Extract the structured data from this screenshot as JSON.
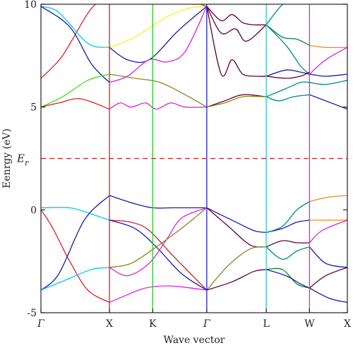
{
  "chart_data": {
    "type": "line",
    "xlabel": "Wave vector",
    "ylabel": "Eenrgy (eV)",
    "ylim": [
      -5,
      10
    ],
    "xlim": [
      0,
      8.5
    ],
    "yticks": [
      -5,
      0,
      5,
      10
    ],
    "k_points": [
      {
        "label": "Γ",
        "x": 0,
        "italic": true,
        "color": null
      },
      {
        "label": "X",
        "x": 1.9,
        "italic": false,
        "color": "#cc2222"
      },
      {
        "label": "K",
        "x": 3.1,
        "italic": false,
        "color": "#22cc22"
      },
      {
        "label": "Γ",
        "x": 4.6,
        "italic": true,
        "color": "#2222dd"
      },
      {
        "label": "L",
        "x": 6.25,
        "italic": false,
        "color": "#22cccc"
      },
      {
        "label": "W",
        "x": 7.45,
        "italic": false,
        "color": "#dd22dd"
      },
      {
        "label": "X",
        "x": 8.5,
        "italic": false,
        "color": null
      }
    ],
    "fermi": {
      "value": 2.5,
      "label_main": "E",
      "label_sub": "r",
      "color": "#cc2222"
    },
    "series": [
      {
        "color": "#dd2222",
        "x": [
          0,
          0.3,
          0.8,
          1.3,
          1.9
        ],
        "y": [
          0,
          -0.8,
          -2.5,
          -3.9,
          -4.5
        ]
      },
      {
        "color": "#00ccee",
        "x": [
          0,
          0.8,
          1.4,
          1.9
        ],
        "y": [
          0.1,
          0.1,
          -0.2,
          -0.5
        ]
      },
      {
        "color": "#1a1aaa",
        "x": [
          0,
          0.5,
          1.2,
          1.9
        ],
        "y": [
          -3.9,
          -3.1,
          -0.5,
          0.7
        ]
      },
      {
        "color": "#00ccee",
        "x": [
          0,
          0.7,
          1.4,
          1.9
        ],
        "y": [
          -3.9,
          -3.4,
          -2.9,
          -2.8
        ]
      },
      {
        "color": "#dd2222",
        "x": [
          0,
          0.6,
          1.4,
          1.9
        ],
        "y": [
          6.4,
          7.5,
          9.8,
          10.2
        ]
      },
      {
        "color": "#00ccee",
        "x": [
          0,
          0.5,
          1.3,
          1.9
        ],
        "y": [
          9.9,
          9.6,
          8.1,
          7.9
        ]
      },
      {
        "color": "#1a1aaa",
        "x": [
          0,
          0.8,
          1.4,
          1.9
        ],
        "y": [
          9.9,
          8.9,
          7.1,
          6.2
        ]
      },
      {
        "color": "#44dd22",
        "x": [
          0,
          0.6,
          1.3,
          1.9
        ],
        "y": [
          5,
          5.5,
          6.3,
          6.6
        ]
      },
      {
        "color": "#dd2222",
        "x": [
          0,
          0.5,
          1.1,
          1.9
        ],
        "y": [
          5,
          5.2,
          5.4,
          4.9
        ]
      },
      {
        "color": "#1a1aaa",
        "x": [
          1.9,
          2.6,
          3.1,
          3.7,
          4.6
        ],
        "y": [
          0.7,
          0.3,
          0.1,
          0.1,
          0.1
        ]
      },
      {
        "color": "#cc2222",
        "x": [
          1.9,
          2.5,
          3.0,
          3.7,
          4.6
        ],
        "y": [
          -0.5,
          -0.6,
          -1.0,
          -2.3,
          -3.9
        ]
      },
      {
        "color": "#1a1aaa",
        "x": [
          1.9,
          2.6,
          3.2,
          3.9,
          4.6
        ],
        "y": [
          -0.5,
          -0.9,
          -1.8,
          -3.1,
          -3.9
        ]
      },
      {
        "color": "#dd22dd",
        "x": [
          1.9,
          2.4,
          3.0,
          3.5,
          3.9,
          4.6
        ],
        "y": [
          -2.8,
          -3.2,
          -2.6,
          -1.4,
          -0.4,
          0.1
        ]
      },
      {
        "color": "#888822",
        "x": [
          1.9,
          2.5,
          3.2,
          3.9,
          4.6
        ],
        "y": [
          -2.8,
          -2.6,
          -1.8,
          -0.9,
          0.1
        ]
      },
      {
        "color": "#dd22dd",
        "x": [
          1.9,
          2.3,
          2.9,
          3.6,
          4.6
        ],
        "y": [
          -4.5,
          -4.2,
          -3.8,
          -3.7,
          -3.9
        ]
      },
      {
        "color": "#ffee22",
        "x": [
          1.9,
          2.6,
          3.4,
          4.1,
          4.6
        ],
        "y": [
          7.9,
          8.4,
          9.3,
          9.8,
          9.9
        ]
      },
      {
        "color": "#1a1aaa",
        "x": [
          1.9,
          2.4,
          3.0,
          3.8,
          4.6
        ],
        "y": [
          7.9,
          7.3,
          7.3,
          8.7,
          9.9
        ]
      },
      {
        "color": "#dd22dd",
        "x": [
          1.9,
          2.4,
          3.0,
          3.5,
          4.0,
          4.6
        ],
        "y": [
          6.2,
          6.5,
          7.3,
          7.2,
          7.7,
          9.9
        ]
      },
      {
        "color": "#888822",
        "x": [
          1.9,
          2.6,
          3.3,
          4.0,
          4.6
        ],
        "y": [
          6.6,
          6.4,
          6.2,
          5.6,
          5.0
        ]
      },
      {
        "color": "#dd22dd",
        "x": [
          1.9,
          2.2,
          2.5,
          2.9,
          3.2,
          3.6,
          4.0,
          4.6
        ],
        "y": [
          4.9,
          5.2,
          5.0,
          5.2,
          4.9,
          5.2,
          5.0,
          5.0
        ]
      },
      {
        "color": "#dd22dd",
        "x": [
          3.1,
          3.5,
          3.9,
          4.6
        ],
        "y": [
          10.2,
          10.6,
          10.3,
          9.9
        ]
      },
      {
        "color": "#1a1aaa",
        "x": [
          4.6,
          5.3,
          5.9,
          6.25
        ],
        "y": [
          0.1,
          -0.5,
          -1.0,
          -1.1
        ]
      },
      {
        "color": "#660033",
        "x": [
          4.6,
          5.2,
          5.8,
          6.25
        ],
        "y": [
          0.1,
          -0.8,
          -1.7,
          -1.8
        ]
      },
      {
        "color": "#888822",
        "x": [
          4.6,
          5.2,
          5.8,
          6.25
        ],
        "y": [
          -3.9,
          -2.7,
          -1.9,
          -1.8
        ]
      },
      {
        "color": "#660033",
        "x": [
          4.6,
          5.3,
          5.9,
          6.25
        ],
        "y": [
          -3.9,
          -3.5,
          -3.0,
          -2.9
        ]
      },
      {
        "color": "#660033",
        "x": [
          4.6,
          5.0,
          5.3,
          5.6,
          5.9,
          6.25
        ],
        "y": [
          9.9,
          9.2,
          9.5,
          9.1,
          9.0,
          9.0
        ]
      },
      {
        "color": "#660033",
        "x": [
          4.6,
          5.0,
          5.4,
          5.7,
          6.25
        ],
        "y": [
          9.9,
          8.6,
          8.8,
          8.2,
          9.0
        ]
      },
      {
        "color": "#660033",
        "x": [
          4.6,
          5.0,
          5.3,
          5.6,
          6.0,
          6.25
        ],
        "y": [
          9.9,
          6.6,
          7.3,
          6.6,
          6.5,
          6.5
        ]
      },
      {
        "color": "#660033",
        "x": [
          4.6,
          5.1,
          5.6,
          6.25
        ],
        "y": [
          5.0,
          5.3,
          5.6,
          5.5
        ]
      },
      {
        "color": "#888822",
        "x": [
          4.6,
          5.1,
          5.6,
          6.25
        ],
        "y": [
          5.0,
          5.2,
          5.5,
          5.5
        ]
      },
      {
        "color": "#1a1aaa",
        "x": [
          6.25,
          6.7,
          7.1,
          7.45
        ],
        "y": [
          -1.1,
          -0.9,
          -0.6,
          -0.5
        ]
      },
      {
        "color": "#008888",
        "x": [
          6.25,
          6.7,
          7.1,
          7.45
        ],
        "y": [
          -1.1,
          -0.8,
          0.0,
          0.4
        ]
      },
      {
        "color": "#008888",
        "x": [
          6.25,
          6.7,
          7.1,
          7.45
        ],
        "y": [
          -1.8,
          -2.4,
          -2.0,
          -1.8
        ]
      },
      {
        "color": "#660033",
        "x": [
          6.25,
          6.7,
          7.1,
          7.45
        ],
        "y": [
          -1.8,
          -1.5,
          -1.6,
          -1.6
        ]
      },
      {
        "color": "#008833",
        "x": [
          6.25,
          6.7,
          7.1,
          7.45
        ],
        "y": [
          -2.9,
          -2.9,
          -3.6,
          -3.8
        ]
      },
      {
        "color": "#1a1aaa",
        "x": [
          6.25,
          6.8,
          7.2,
          7.45
        ],
        "y": [
          -2.9,
          -3.2,
          -3.6,
          -3.8
        ]
      },
      {
        "color": "#008833",
        "x": [
          6.25,
          6.7,
          7.1,
          7.45
        ],
        "y": [
          9.0,
          8.4,
          8.3,
          8.0
        ]
      },
      {
        "color": "#008888",
        "x": [
          6.25,
          6.8,
          7.2,
          7.45
        ],
        "y": [
          9.0,
          8.0,
          7.0,
          6.6
        ]
      },
      {
        "color": "#008888",
        "x": [
          6.25,
          6.6,
          6.9
        ],
        "y": [
          9.0,
          9.8,
          10.3
        ]
      },
      {
        "color": "#1a1aaa",
        "x": [
          6.25,
          6.8,
          7.2,
          7.45
        ],
        "y": [
          6.5,
          6.8,
          6.7,
          6.6
        ]
      },
      {
        "color": "#660033",
        "x": [
          6.25,
          6.8,
          7.2,
          7.45
        ],
        "y": [
          6.5,
          6.4,
          6.5,
          6.7
        ]
      },
      {
        "color": "#008888",
        "x": [
          6.25,
          6.8,
          7.2,
          7.45
        ],
        "y": [
          5.5,
          5.9,
          6.2,
          6.2
        ]
      },
      {
        "color": "#008888",
        "x": [
          6.25,
          6.6,
          7.0,
          7.45
        ],
        "y": [
          5.5,
          5.3,
          5.5,
          5.6
        ]
      },
      {
        "color": "#ee8822",
        "x": [
          7.45,
          7.9,
          8.5
        ],
        "y": [
          0.4,
          0.6,
          0.7
        ]
      },
      {
        "color": "#ee8822",
        "x": [
          7.45,
          7.9,
          8.5
        ],
        "y": [
          -0.5,
          -0.5,
          -0.5
        ]
      },
      {
        "color": "#dd22dd",
        "x": [
          7.45,
          7.8,
          8.5
        ],
        "y": [
          -1.6,
          -1.0,
          -0.5
        ]
      },
      {
        "color": "#1a1aaa",
        "x": [
          7.45,
          7.9,
          8.5
        ],
        "y": [
          -1.8,
          -2.6,
          -2.8
        ]
      },
      {
        "color": "#660033",
        "x": [
          7.45,
          7.9,
          8.5
        ],
        "y": [
          -3.8,
          -3.2,
          -2.8
        ]
      },
      {
        "color": "#1a1aaa",
        "x": [
          7.45,
          8.0,
          8.5
        ],
        "y": [
          -3.8,
          -4.3,
          -4.5
        ]
      },
      {
        "color": "#ee8822",
        "x": [
          7.45,
          7.9,
          8.5
        ],
        "y": [
          8.0,
          7.9,
          7.9
        ]
      },
      {
        "color": "#dd22dd",
        "x": [
          7.45,
          7.9,
          8.5
        ],
        "y": [
          6.6,
          7.3,
          7.9
        ]
      },
      {
        "color": "#1a1aaa",
        "x": [
          7.45,
          7.9,
          8.5
        ],
        "y": [
          6.6,
          6.5,
          6.6
        ]
      },
      {
        "color": "#008888",
        "x": [
          7.45,
          7.9,
          8.5
        ],
        "y": [
          6.2,
          6.1,
          6.3
        ]
      },
      {
        "color": "#1a1aaa",
        "x": [
          7.45,
          7.9,
          8.5
        ],
        "y": [
          5.6,
          5.3,
          4.9
        ]
      }
    ]
  }
}
